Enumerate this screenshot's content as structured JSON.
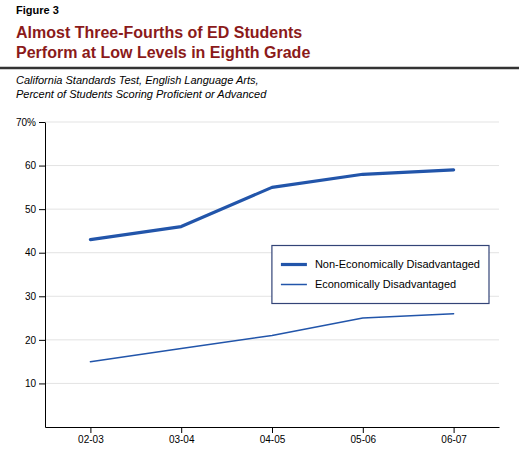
{
  "chart_data": {
    "type": "line",
    "title": "Almost Three-Fourths of ED Students\nPerform at Low Levels in Eighth Grade",
    "subtitle": "California Standards Test, English Language Arts,\nPercent of Students Scoring Proficient or Advanced",
    "annotations": [
      {
        "text": "Figure 3"
      }
    ],
    "categories": [
      "02-03",
      "03-04",
      "04-05",
      "05-06",
      "06-07"
    ],
    "series": [
      {
        "name": "Non-Economically Disadvantaged",
        "color": "#2255aa",
        "values": [
          43,
          46,
          55,
          58,
          59
        ]
      },
      {
        "name": "Economically Disadvantaged",
        "color": "#2255aa",
        "values": [
          15,
          18,
          21,
          25,
          26
        ]
      }
    ],
    "ylim": [
      0,
      70
    ],
    "yticks": [
      10,
      20,
      30,
      40,
      50,
      60,
      {
        "value": 70,
        "label": "70%"
      }
    ],
    "grid": true,
    "legend": "right"
  }
}
